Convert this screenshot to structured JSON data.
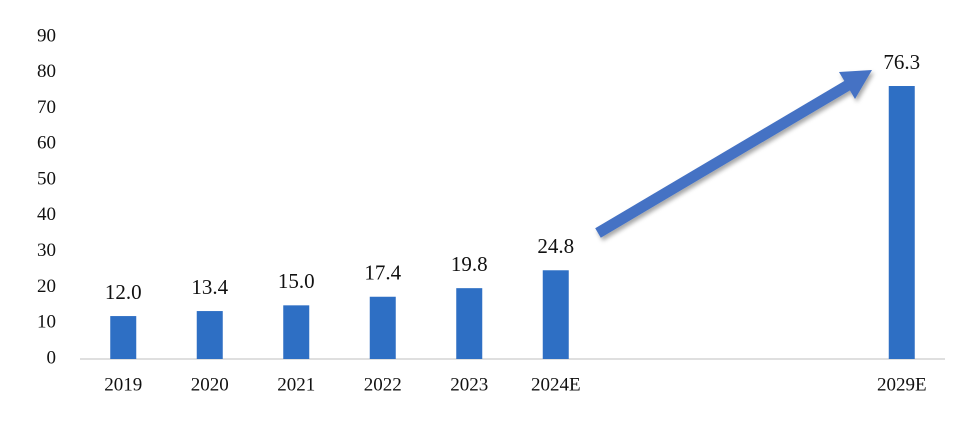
{
  "chart_data": {
    "type": "bar",
    "categories": [
      "2019",
      "2020",
      "2021",
      "2022",
      "2023",
      "2024E",
      null,
      null,
      null,
      "2029E"
    ],
    "values": [
      12.0,
      13.4,
      15.0,
      17.4,
      19.8,
      24.8,
      null,
      null,
      null,
      76.3
    ],
    "value_labels": [
      "12.0",
      "13.4",
      "15.0",
      "17.4",
      "19.8",
      "24.8",
      null,
      null,
      null,
      "76.3"
    ],
    "color": "#2e6fc4",
    "ylim": [
      0,
      90
    ],
    "yticks": [
      0,
      10,
      20,
      30,
      40,
      50,
      60,
      70,
      80,
      90
    ],
    "grid": false
  }
}
